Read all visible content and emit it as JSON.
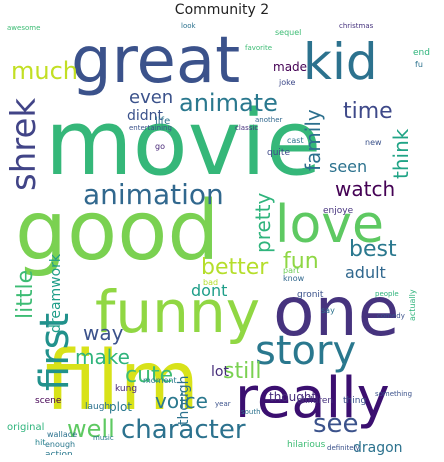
{
  "title": "Community 2",
  "words": [
    {
      "text": "movie",
      "color": "#35b779"
    },
    {
      "text": "good",
      "color": "#7ad151"
    },
    {
      "text": "film",
      "color": "#d8e219"
    },
    {
      "text": "great",
      "color": "#3b528b"
    },
    {
      "text": "one",
      "color": "#46337e"
    },
    {
      "text": "funny",
      "color": "#90d743"
    },
    {
      "text": "really",
      "color": "#3b0f70"
    },
    {
      "text": "kid",
      "color": "#2c728e"
    },
    {
      "text": "love",
      "color": "#5ec962"
    },
    {
      "text": "story",
      "color": "#2a788e"
    },
    {
      "text": "first",
      "color": "#21918c"
    },
    {
      "text": "shrek",
      "color": "#414487"
    },
    {
      "text": "animation",
      "color": "#31688e"
    },
    {
      "text": "character",
      "color": "#2c728e"
    },
    {
      "text": "much",
      "color": "#c2df23"
    },
    {
      "text": "animate",
      "color": "#2a788e"
    },
    {
      "text": "well",
      "color": "#5ec962"
    },
    {
      "text": "time",
      "color": "#3e4989"
    },
    {
      "text": "fun",
      "color": "#8fd744"
    },
    {
      "text": "better",
      "color": "#b5de2b"
    },
    {
      "text": "best",
      "color": "#2a788e"
    },
    {
      "text": "family",
      "color": "#2d708e"
    },
    {
      "text": "think",
      "color": "#20a486"
    },
    {
      "text": "pretty",
      "color": "#2fb47c"
    },
    {
      "text": "little",
      "color": "#3dbc74"
    },
    {
      "text": "watch",
      "color": "#440154"
    },
    {
      "text": "cute",
      "color": "#3dbc74"
    },
    {
      "text": "see",
      "color": "#3b528b"
    },
    {
      "text": "still",
      "color": "#7ad151"
    },
    {
      "text": "voice",
      "color": "#2a788e"
    },
    {
      "text": "make",
      "color": "#2fb47c"
    },
    {
      "text": "way",
      "color": "#3b528b"
    },
    {
      "text": "even",
      "color": "#3b528b"
    },
    {
      "text": "seen",
      "color": "#2c728e"
    },
    {
      "text": "adult",
      "color": "#31688e"
    },
    {
      "text": "dragon",
      "color": "#2c728e"
    },
    {
      "text": "dont",
      "color": "#1f9e89"
    },
    {
      "text": "made",
      "color": "#440154"
    },
    {
      "text": "didnt",
      "color": "#3b528b"
    },
    {
      "text": "dreamwork",
      "color": "#1f9e89"
    },
    {
      "text": "lot",
      "color": "#472d7b"
    },
    {
      "text": "thought",
      "color": "#472d7b"
    },
    {
      "text": "though",
      "color": "#2c728e"
    },
    {
      "text": "plot",
      "color": "#2a788e"
    },
    {
      "text": "life",
      "color": "#2c728e"
    },
    {
      "text": "part",
      "color": "#6ece58"
    },
    {
      "text": "enjoye",
      "color": "#46337e"
    },
    {
      "text": "gronit",
      "color": "#3b528b"
    },
    {
      "text": "scene",
      "color": "#440154"
    },
    {
      "text": "laugh",
      "color": "#2c728e"
    },
    {
      "text": "kung",
      "color": "#482878"
    },
    {
      "text": "moment",
      "color": "#2a788e"
    },
    {
      "text": "original",
      "color": "#2fb47c"
    },
    {
      "text": "hit",
      "color": "#26828e"
    },
    {
      "text": "action",
      "color": "#2a788e"
    },
    {
      "text": "children",
      "color": "#46337e"
    },
    {
      "text": "thing",
      "color": "#3b528b"
    },
    {
      "text": "bad",
      "color": "#b5de2b"
    },
    {
      "text": "know",
      "color": "#31688e"
    },
    {
      "text": "say",
      "color": "#2c728e"
    },
    {
      "text": "quite",
      "color": "#3e4989"
    },
    {
      "text": "actually",
      "color": "#2fb47c"
    },
    {
      "text": "something",
      "color": "#3b528b"
    },
    {
      "text": "joke",
      "color": "#3e4989"
    },
    {
      "text": "sequel",
      "color": "#3dbc74"
    },
    {
      "text": "entertaining",
      "color": "#3b528b"
    },
    {
      "text": "another",
      "color": "#31688e"
    },
    {
      "text": "classic",
      "color": "#46337e"
    },
    {
      "text": "cast",
      "color": "#2c728e"
    },
    {
      "text": "end",
      "color": "#2fb47c"
    },
    {
      "text": "enough",
      "color": "#2a788e"
    },
    {
      "text": "hilarious",
      "color": "#3dbc74"
    },
    {
      "text": "definitely",
      "color": "#3b528b"
    },
    {
      "text": "wallace",
      "color": "#2c728e"
    },
    {
      "text": "year",
      "color": "#3b528b"
    },
    {
      "text": "awesome",
      "color": "#3dbc74"
    },
    {
      "text": "look",
      "color": "#2c728e"
    },
    {
      "text": "christmas",
      "color": "#46337e"
    },
    {
      "text": "go",
      "color": "#482878"
    },
    {
      "text": "new",
      "color": "#3b528b"
    },
    {
      "text": "fu",
      "color": "#2c728e"
    },
    {
      "text": "south",
      "color": "#2c728e"
    },
    {
      "text": "people",
      "color": "#2fb47c"
    },
    {
      "text": "music",
      "color": "#2a788e"
    },
    {
      "text": "favorite",
      "color": "#3dbc74"
    },
    {
      "text": "comedy",
      "color": "#3b528b"
    }
  ]
}
